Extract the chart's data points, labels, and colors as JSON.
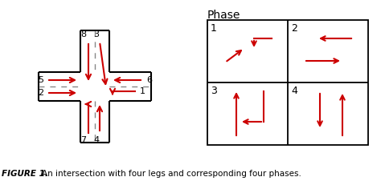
{
  "fig_width": 4.74,
  "fig_height": 2.31,
  "dpi": 100,
  "bg_color": "#ffffff",
  "arrow_color": "#cc0000",
  "road_color": "#000000",
  "caption_bold": "FIGURE 1.",
  "caption_text": "An intersection with four legs and corresponding four phases.",
  "phase_title": "Phase"
}
